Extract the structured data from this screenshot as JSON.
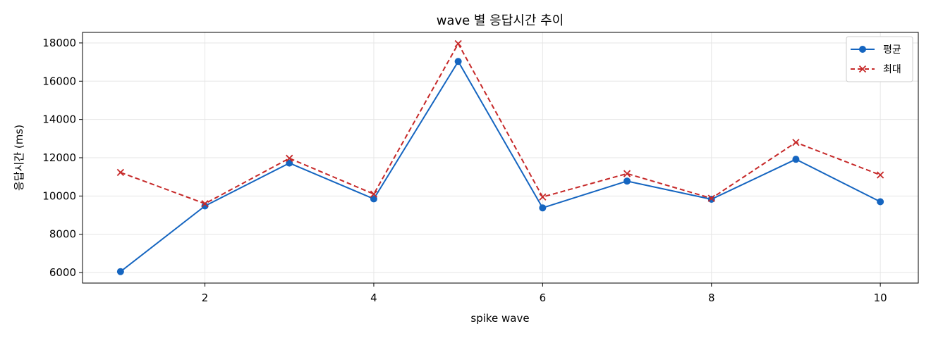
{
  "chart_data": {
    "type": "line",
    "title": "wave 별 응답시간 추이",
    "xlabel": "spike wave",
    "ylabel": "응답시간 (ms)",
    "x": [
      1,
      2,
      3,
      4,
      5,
      6,
      7,
      8,
      9,
      10
    ],
    "xlim": [
      0.55,
      10.45
    ],
    "ylim": [
      5450,
      18550
    ],
    "xticks": [
      2,
      4,
      6,
      8,
      10
    ],
    "yticks": [
      6000,
      8000,
      10000,
      12000,
      14000,
      16000,
      18000
    ],
    "grid": true,
    "legend_position": "top-right",
    "series": [
      {
        "name": "평균",
        "color": "#1565c0",
        "marker": "circle",
        "line_style": "solid",
        "values": [
          6050,
          9480,
          11720,
          9850,
          17030,
          9380,
          10780,
          9830,
          11920,
          9700
        ]
      },
      {
        "name": "최대",
        "color": "#c62828",
        "marker": "x",
        "line_style": "dashed",
        "values": [
          11230,
          9600,
          11970,
          10100,
          17960,
          9950,
          11170,
          9880,
          12800,
          11100
        ]
      }
    ]
  }
}
